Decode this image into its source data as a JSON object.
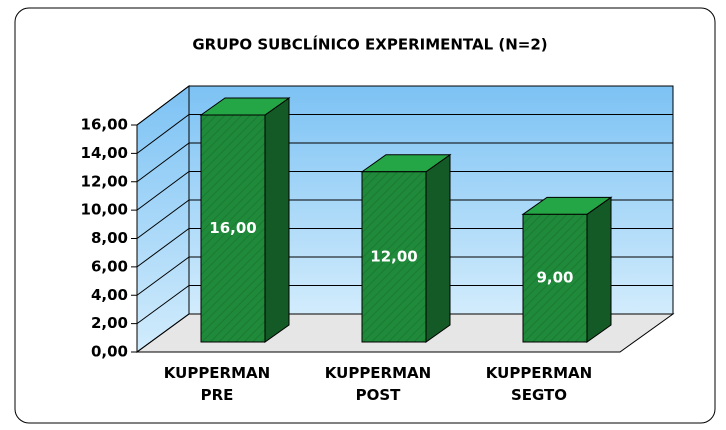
{
  "chart_data": {
    "type": "bar3d",
    "title": "GRUPO SUBCLÍNICO EXPERIMENTAL (N=2)",
    "categories": [
      "KUPPERMAN PRE",
      "KUPPERMAN POST",
      "KUPPERMAN SEGTO"
    ],
    "values": [
      16,
      12,
      9
    ],
    "value_labels": [
      "16,00",
      "12,00",
      "9,00"
    ],
    "color": "#1f8a3a",
    "ylim": [
      0,
      16
    ],
    "yticks": [
      {
        "value": 0,
        "label": "0,00"
      },
      {
        "value": 2,
        "label": "2,00"
      },
      {
        "value": 4,
        "label": "4,00"
      },
      {
        "value": 6,
        "label": "6,00"
      },
      {
        "value": 8,
        "label": "8,00"
      },
      {
        "value": 10,
        "label": "10,00"
      },
      {
        "value": 12,
        "label": "12,00"
      },
      {
        "value": 14,
        "label": "14,00"
      },
      {
        "value": 16,
        "label": "16,00"
      }
    ],
    "grid": true
  }
}
